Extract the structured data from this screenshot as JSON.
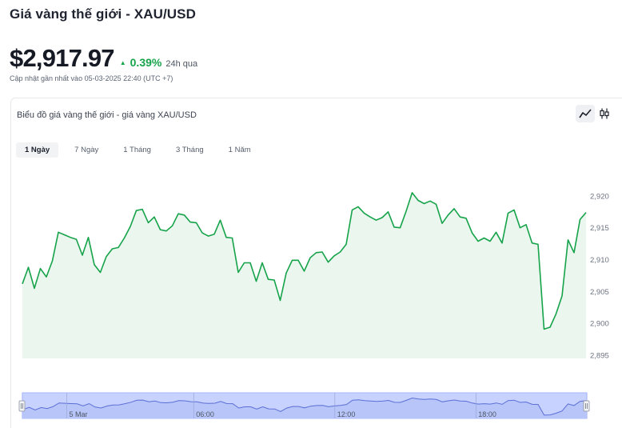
{
  "header": {
    "title": "Giá vàng thế giới - XAU/USD",
    "price": "$2,917.97",
    "change": "0.39%",
    "change_period": "24h qua",
    "updated": "Cập nhật gần nhất vào 05-03-2025 22:40 (UTC +7)"
  },
  "card": {
    "title": "Biểu đồ giá vàng thế giới - giá vàng XAU/USD",
    "range_tabs": [
      {
        "label": "1 Ngày",
        "active": true
      },
      {
        "label": "7 Ngày",
        "active": false
      },
      {
        "label": "1 Tháng",
        "active": false
      },
      {
        "label": "3 Tháng",
        "active": false
      },
      {
        "label": "1 Năm",
        "active": false
      }
    ],
    "chart_mode_icons": [
      "line-chart-icon",
      "candlestick-icon"
    ]
  },
  "colors": {
    "line": "#16a34a",
    "area": "#eaf6ee",
    "positive": "#16a34a",
    "navigator_band": "#c7d2fe",
    "navigator_line": "#5b6fd6"
  },
  "chart_data": {
    "type": "area",
    "y_ticks": [
      "2,920",
      "2,915",
      "2,910",
      "2,905",
      "2,900",
      "2,895"
    ],
    "y_tick_values": [
      2920,
      2915,
      2910,
      2905,
      2900,
      2895
    ],
    "ylim": [
      2894.5,
      2922.5
    ],
    "navigator_ticks": [
      "5 Mar",
      "06:00",
      "12:00",
      "18:00"
    ],
    "navigator_tick_positions": [
      0.08,
      0.305,
      0.555,
      0.805
    ],
    "values": [
      2906.2,
      2908.8,
      2905.5,
      2908.6,
      2907.3,
      2909.8,
      2914.3,
      2913.9,
      2913.5,
      2913.2,
      2910.7,
      2913.5,
      2909.2,
      2908.0,
      2910.5,
      2911.7,
      2911.9,
      2913.4,
      2915.2,
      2917.7,
      2917.9,
      2915.8,
      2916.7,
      2914.7,
      2914.5,
      2915.3,
      2917.2,
      2917.0,
      2915.9,
      2915.8,
      2914.2,
      2913.7,
      2914.0,
      2916.2,
      2913.5,
      2913.4,
      2908.0,
      2909.5,
      2909.5,
      2906.6,
      2909.5,
      2906.9,
      2906.8,
      2903.6,
      2907.9,
      2909.9,
      2909.9,
      2908.2,
      2910.3,
      2911.1,
      2911.2,
      2909.6,
      2910.6,
      2911.2,
      2912.4,
      2917.8,
      2918.3,
      2917.3,
      2916.7,
      2916.2,
      2916.6,
      2917.5,
      2915.1,
      2915.0,
      2917.6,
      2920.5,
      2919.3,
      2918.8,
      2919.2,
      2918.7,
      2915.7,
      2917.0,
      2918.0,
      2916.7,
      2916.5,
      2914.2,
      2912.9,
      2913.4,
      2912.9,
      2914.3,
      2912.6,
      2917.3,
      2917.8,
      2915.0,
      2915.5,
      2912.6,
      2912.4,
      2899.1,
      2899.4,
      2901.5,
      2904.3,
      2913.1,
      2911.1,
      2916.3,
      2917.4
    ]
  }
}
